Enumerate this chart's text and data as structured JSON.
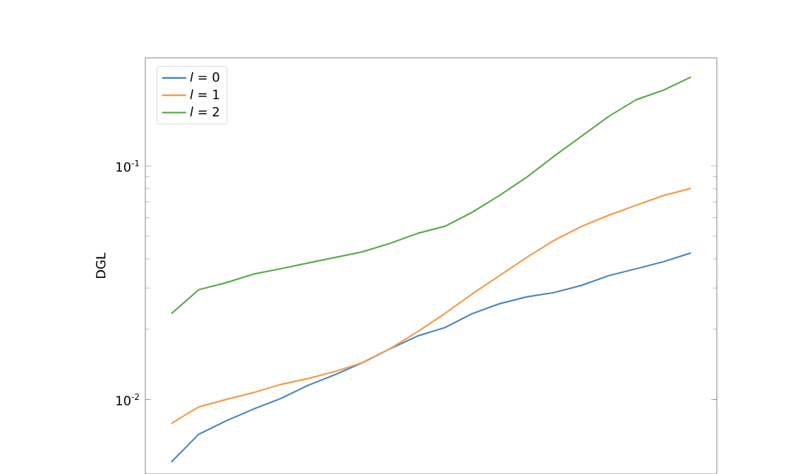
{
  "chart_data": {
    "type": "line",
    "ylabel": "DGL",
    "log": "y",
    "legend": "top left",
    "tick_labels": "y",
    "categories": [
      null,
      null,
      null,
      null,
      null,
      null,
      null,
      null,
      null,
      null,
      null,
      null,
      null,
      null,
      null,
      null,
      null,
      null,
      null,
      null
    ],
    "ylim": [
      0.0048,
      0.29
    ],
    "yticks": [
      {
        "value": 0.01,
        "label": "10$^{-2}$"
      },
      {
        "value": 0.1,
        "label": "10$^{-1}$"
      }
    ],
    "series": [
      {
        "name": "*l* = 0",
        "color": "#4c88c0",
        "values": [
          0.0054,
          0.0071,
          0.0081,
          0.0091,
          0.0101,
          0.0115,
          0.0128,
          0.0144,
          0.0165,
          0.0187,
          0.0203,
          0.0233,
          0.0257,
          0.0275,
          0.0287,
          0.0308,
          0.0339,
          0.0363,
          0.0389,
          0.0424
        ]
      },
      {
        "name": "*l* = 1",
        "color": "#f59a4a",
        "values": [
          0.0079,
          0.0093,
          0.01,
          0.0107,
          0.0116,
          0.0123,
          0.0132,
          0.0144,
          0.0165,
          0.0195,
          0.0233,
          0.0283,
          0.0339,
          0.0406,
          0.048,
          0.0551,
          0.0615,
          0.0678,
          0.0747,
          0.0801
        ]
      },
      {
        "name": "*l* = 2",
        "color": "#5aab4a",
        "values": [
          0.0233,
          0.0295,
          0.0316,
          0.0344,
          0.0363,
          0.0384,
          0.0406,
          0.0429,
          0.0466,
          0.0514,
          0.0551,
          0.0633,
          0.0747,
          0.0895,
          0.11,
          0.134,
          0.163,
          0.192,
          0.211,
          0.24
        ]
      }
    ]
  }
}
